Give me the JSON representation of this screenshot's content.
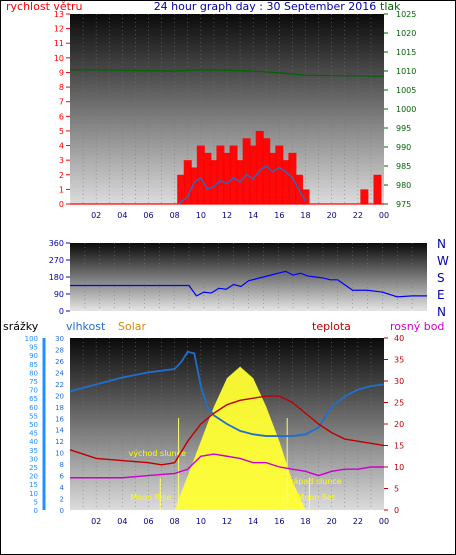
{
  "title": "24 hour graph day : 30 September 2016",
  "colors": {
    "wind": "#ff0000",
    "gust": "#1e6fd0",
    "pressure": "#006400",
    "direction": "#0000ff",
    "rain": "#1e90ff",
    "humidity": "#1e6fd0",
    "solar": "#ffff33",
    "solar_text": "#d48a00",
    "temp": "#c00000",
    "dew": "#cc00cc"
  },
  "chart_data": [
    {
      "type": "line",
      "title": "24 hour graph day : 30 September 2016",
      "left_axis_label": "rychlost větru",
      "right_axis_label": "tlak",
      "left_ticks": [
        "0",
        "1",
        "2",
        "3",
        "4",
        "5",
        "6",
        "7",
        "8",
        "9",
        "10",
        "11",
        "12",
        "13"
      ],
      "right_ticks": [
        "975",
        "980",
        "985",
        "990",
        "995",
        "1000",
        "1005",
        "1010",
        "1015",
        "1020",
        "1025"
      ],
      "x_ticks": [
        "02",
        "04",
        "06",
        "08",
        "10",
        "12",
        "14",
        "16",
        "18",
        "20",
        "22",
        "00"
      ],
      "xlim": [
        0,
        24
      ],
      "ylim_left": [
        0,
        13
      ],
      "ylim_right": [
        975,
        1025
      ],
      "series": [
        {
          "axis": "left",
          "style": "bars",
          "color": "#ff0000",
          "x": [
            8.5,
            9,
            9.5,
            10,
            10.5,
            11,
            11.5,
            12,
            12.5,
            13,
            13.5,
            14,
            14.5,
            15,
            15.5,
            16,
            16.5,
            17,
            17.5,
            18,
            22.5,
            23.5
          ],
          "values": [
            2,
            3,
            2.5,
            4,
            3.5,
            3,
            4,
            3.5,
            4,
            3,
            4.5,
            4,
            5,
            4.5,
            3.5,
            4,
            3,
            3.5,
            2,
            1,
            1,
            2
          ]
        },
        {
          "axis": "left",
          "style": "line",
          "color": "#1e6fd0",
          "x": [
            8.3,
            9,
            9.5,
            10,
            10.5,
            11,
            11.5,
            12,
            12.5,
            13,
            13.5,
            14,
            14.5,
            15,
            15.5,
            16,
            16.5,
            17,
            17.5,
            18
          ],
          "values": [
            0,
            0.5,
            1.5,
            1.8,
            1,
            1.2,
            1.6,
            1.4,
            1.8,
            1.5,
            2,
            1.7,
            2.3,
            2.6,
            2.2,
            2.5,
            2.2,
            1.8,
            1,
            0.2
          ]
        },
        {
          "axis": "right",
          "style": "line",
          "color": "#006400",
          "x": [
            0,
            2,
            4,
            6,
            8,
            10,
            12,
            14,
            16,
            18,
            20,
            22,
            24
          ],
          "values": [
            1010.3,
            1010.3,
            1010.2,
            1010.1,
            1010,
            1010.3,
            1010.2,
            1010,
            1009.5,
            1008.9,
            1008.8,
            1008.7,
            1008.6
          ]
        }
      ]
    },
    {
      "type": "line",
      "title": "",
      "left_ticks": [
        "0",
        "90",
        "180",
        "270",
        "360"
      ],
      "right_ticks": [
        "N",
        "W",
        "S",
        "E",
        "N"
      ],
      "xlim": [
        0,
        24
      ],
      "ylim": [
        0,
        360
      ],
      "series": [
        {
          "color": "#0000ff",
          "x": [
            0,
            2,
            4,
            6,
            8,
            8.5,
            9,
            9.5,
            10,
            10.5,
            11,
            11.5,
            12,
            12.5,
            13,
            13.5,
            14,
            14.5,
            15,
            15.5,
            16,
            16.5,
            17,
            17.5,
            18,
            19,
            20,
            21,
            22,
            23,
            24
          ],
          "values": [
            135,
            135,
            135,
            135,
            135,
            80,
            100,
            95,
            120,
            115,
            140,
            130,
            160,
            170,
            180,
            190,
            200,
            210,
            190,
            200,
            185,
            180,
            175,
            165,
            165,
            110,
            110,
            100,
            75,
            80,
            80
          ]
        }
      ]
    },
    {
      "type": "line",
      "title": "",
      "rain_label": "srážky",
      "humidity_label": "vlhkost",
      "solar_label": "Solar",
      "temp_label": "teplota",
      "dew_label": "rosný bod",
      "rain_ticks": [
        "0",
        "5",
        "10",
        "15",
        "20",
        "25",
        "30",
        "35",
        "40",
        "45",
        "50",
        "55",
        "60",
        "65",
        "70",
        "75",
        "80",
        "85",
        "90",
        "95",
        "100"
      ],
      "humidity_ticks": [
        "0",
        "2",
        "4",
        "6",
        "8",
        "10",
        "12",
        "14",
        "16",
        "18",
        "20",
        "22",
        "24",
        "26",
        "28",
        "30"
      ],
      "temp_ticks": [
        "0",
        "5",
        "10",
        "15",
        "20",
        "25",
        "30",
        "35",
        "40"
      ],
      "x_ticks": [
        "02",
        "04",
        "06",
        "08",
        "10",
        "12",
        "14",
        "16",
        "18",
        "20",
        "22",
        "00"
      ],
      "xlim": [
        0,
        24
      ],
      "ylim_rain": [
        0,
        100
      ],
      "ylim_humidity": [
        0,
        30
      ],
      "ylim_temp": [
        0,
        40
      ],
      "annotations": [
        "východ slunce",
        "západ slunce",
        "Moon Rise",
        "Moon Set"
      ],
      "series": [
        {
          "name": "vlhkost",
          "color": "#1e6fd0",
          "x": [
            0,
            2,
            4,
            6,
            7,
            8,
            8.5,
            9,
            9.5,
            10,
            10.5,
            11,
            12,
            13,
            14,
            15,
            16,
            17,
            18,
            19,
            20,
            21,
            22,
            23,
            24
          ],
          "values": [
            69,
            73,
            77,
            80,
            81,
            82,
            86,
            92,
            91,
            72,
            60,
            55,
            50,
            46,
            44,
            43,
            43,
            43,
            44,
            48,
            60,
            66,
            70,
            72,
            73
          ]
        },
        {
          "name": "teplota",
          "color": "#c00000",
          "x": [
            0,
            1,
            2,
            4,
            6,
            7,
            8,
            9,
            10,
            11,
            12,
            13,
            14,
            15,
            16,
            17,
            18,
            19,
            20,
            21,
            22,
            23,
            24
          ],
          "values": [
            14,
            13,
            12,
            11.5,
            11,
            10.5,
            11,
            16,
            20,
            22.5,
            24.5,
            25.5,
            26,
            26.5,
            26.5,
            25,
            22.5,
            20,
            18,
            16.5,
            16,
            15.5,
            15
          ]
        },
        {
          "name": "rosný bod",
          "color": "#cc00cc",
          "x": [
            0,
            2,
            4,
            6,
            8,
            9,
            10,
            11,
            12,
            13,
            14,
            15,
            16,
            17,
            18,
            19,
            20,
            21,
            22,
            23,
            24
          ],
          "values": [
            7.5,
            7.5,
            7.5,
            8,
            8.5,
            9.5,
            12.5,
            13,
            12.5,
            12,
            11,
            11,
            10,
            9.5,
            9,
            8,
            9,
            9.5,
            9.5,
            10,
            10
          ]
        },
        {
          "name": "Solar",
          "color": "#ffff33",
          "x": [
            8,
            9,
            10,
            11,
            12,
            13,
            14,
            15,
            16,
            17,
            18
          ],
          "values": [
            0,
            6,
            12,
            18,
            23,
            25,
            23,
            18,
            12,
            5,
            0
          ]
        }
      ]
    }
  ]
}
